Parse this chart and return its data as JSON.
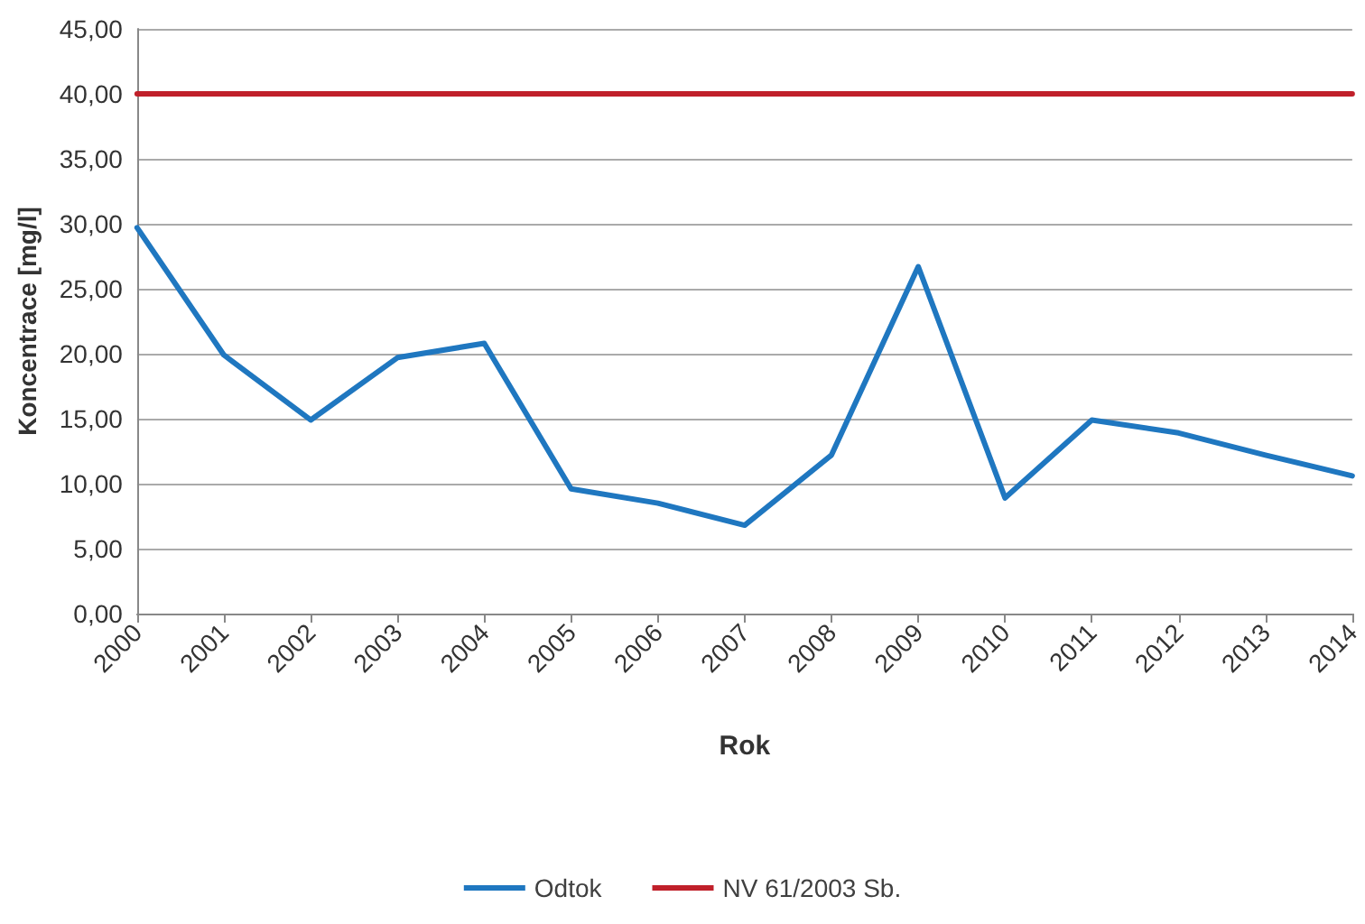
{
  "chart_data": {
    "type": "line",
    "xlabel": "Rok",
    "ylabel": "Koncentrace [mg/l]",
    "categories": [
      "2000",
      "2001",
      "2002",
      "2003",
      "2004",
      "2005",
      "2006",
      "2007",
      "2008",
      "2009",
      "2010",
      "2011",
      "2012",
      "2013",
      "2014"
    ],
    "series": [
      {
        "name": "Odtok",
        "color": "#1f77c0",
        "values": [
          29.7,
          19.9,
          14.9,
          19.7,
          20.8,
          9.6,
          8.5,
          6.8,
          12.2,
          26.7,
          8.9,
          14.9,
          13.9,
          12.2,
          10.6
        ]
      },
      {
        "name": "NV 61/2003 Sb.",
        "color": "#c0202a",
        "values": [
          40,
          40,
          40,
          40,
          40,
          40,
          40,
          40,
          40,
          40,
          40,
          40,
          40,
          40,
          40
        ]
      }
    ],
    "ylim": [
      0,
      45
    ],
    "yticks": [
      {
        "value": 0,
        "label": "0,00"
      },
      {
        "value": 5,
        "label": "5,00"
      },
      {
        "value": 10,
        "label": "10,00"
      },
      {
        "value": 15,
        "label": "15,00"
      },
      {
        "value": 20,
        "label": "20,00"
      },
      {
        "value": 25,
        "label": "25,00"
      },
      {
        "value": 30,
        "label": "30,00"
      },
      {
        "value": 35,
        "label": "35,00"
      },
      {
        "value": 40,
        "label": "40,00"
      },
      {
        "value": 45,
        "label": "45,00"
      }
    ],
    "grid": "y",
    "legend": "bottom",
    "marker": "none",
    "line_style": "solid"
  }
}
